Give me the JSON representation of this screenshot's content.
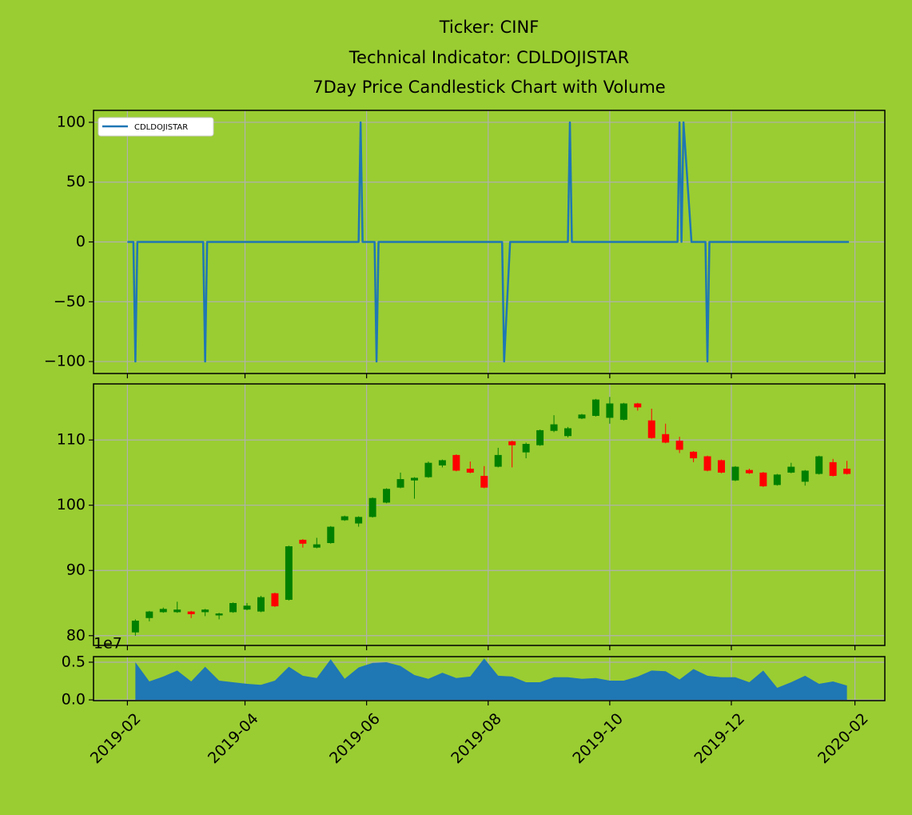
{
  "title": [
    "Ticker: CINF",
    "Technical Indicator: CDLDOJISTAR",
    "7Day Price Candlestick Chart with Volume"
  ],
  "chart_data": [
    {
      "type": "line",
      "x": [
        "2019-02-01",
        "2019-02-04",
        "2019-02-05",
        "2019-02-06",
        "2019-03-11",
        "2019-03-12",
        "2019-03-13",
        "2019-05-28",
        "2019-05-29",
        "2019-05-30",
        "2019-06-05",
        "2019-06-06",
        "2019-06-07",
        "2019-08-08",
        "2019-08-09",
        "2019-08-12",
        "2019-09-10",
        "2019-09-11",
        "2019-09-12",
        "2019-11-04",
        "2019-11-05",
        "2019-11-06",
        "2019-11-07",
        "2019-11-11",
        "2019-11-18",
        "2019-11-19",
        "2019-11-20",
        "2020-01-29"
      ],
      "series": [
        {
          "name": "CDLDOJISTAR",
          "color": "#1f77b4",
          "values": [
            0,
            0,
            -100,
            0,
            0,
            -100,
            0,
            0,
            100,
            0,
            0,
            -100,
            0,
            0,
            -100,
            0,
            0,
            100,
            0,
            0,
            100,
            0,
            100,
            0,
            0,
            -100,
            0,
            0
          ]
        }
      ],
      "ylim": [
        -110,
        110
      ],
      "yticks": [
        {
          "value": -100,
          "label": "−100"
        },
        {
          "value": -50,
          "label": "−50"
        },
        0,
        50,
        100
      ],
      "grid": true,
      "legend": "upper left"
    },
    {
      "type": "candlestick",
      "x": [
        "2019-02-05",
        "2019-02-12",
        "2019-02-19",
        "2019-02-26",
        "2019-03-05",
        "2019-03-12",
        "2019-03-19",
        "2019-03-26",
        "2019-04-02",
        "2019-04-09",
        "2019-04-16",
        "2019-04-23",
        "2019-04-30",
        "2019-05-07",
        "2019-05-14",
        "2019-05-21",
        "2019-05-28",
        "2019-06-04",
        "2019-06-11",
        "2019-06-18",
        "2019-06-25",
        "2019-07-02",
        "2019-07-09",
        "2019-07-16",
        "2019-07-23",
        "2019-07-30",
        "2019-08-06",
        "2019-08-13",
        "2019-08-20",
        "2019-08-27",
        "2019-09-03",
        "2019-09-10",
        "2019-09-17",
        "2019-09-24",
        "2019-10-01",
        "2019-10-08",
        "2019-10-15",
        "2019-10-22",
        "2019-10-29",
        "2019-11-05",
        "2019-11-12",
        "2019-11-19",
        "2019-11-26",
        "2019-12-03",
        "2019-12-10",
        "2019-12-17",
        "2019-12-24",
        "2019-12-31",
        "2020-01-07",
        "2020-01-14",
        "2020-01-21",
        "2020-01-28"
      ],
      "open": [
        80.5,
        82.7,
        83.6,
        83.6,
        83.7,
        83.6,
        83.1,
        83.6,
        84.0,
        83.7,
        86.5,
        85.5,
        94.7,
        93.5,
        94.2,
        97.7,
        97.2,
        98.2,
        100.4,
        102.7,
        103.8,
        104.3,
        106.1,
        107.7,
        105.6,
        104.5,
        105.9,
        109.8,
        108.1,
        109.2,
        111.4,
        110.6,
        113.3,
        113.7,
        113.4,
        113.1,
        115.6,
        113.0,
        110.9,
        109.9,
        108.2,
        107.5,
        106.9,
        103.8,
        105.4,
        105.0,
        103.1,
        105.0,
        103.6,
        104.8,
        106.6,
        105.6
      ],
      "high": [
        82.5,
        83.8,
        84.3,
        85.2,
        83.8,
        84.1,
        83.5,
        85.1,
        85.0,
        86.1,
        86.6,
        93.8,
        94.8,
        95.0,
        96.8,
        98.4,
        98.3,
        101.2,
        102.6,
        105.0,
        104.3,
        106.7,
        107.0,
        107.8,
        106.7,
        106.0,
        108.8,
        109.9,
        109.6,
        111.6,
        113.8,
        112.0,
        114.0,
        116.3,
        116.6,
        115.7,
        115.7,
        114.8,
        112.5,
        110.5,
        108.3,
        107.6,
        107.0,
        106.0,
        105.6,
        105.1,
        104.8,
        106.5,
        105.4,
        107.6,
        107.1,
        106.8
      ],
      "low": [
        80.0,
        82.2,
        83.5,
        83.5,
        82.7,
        83.0,
        82.5,
        83.5,
        83.9,
        83.6,
        84.4,
        85.4,
        93.5,
        93.4,
        94.1,
        97.6,
        96.7,
        98.1,
        100.3,
        102.6,
        101.0,
        104.2,
        105.8,
        105.2,
        104.9,
        102.6,
        105.8,
        105.8,
        107.2,
        109.1,
        111.2,
        110.4,
        113.2,
        113.6,
        112.5,
        113.0,
        114.5,
        110.2,
        109.5,
        108.0,
        106.6,
        105.2,
        104.9,
        103.7,
        104.8,
        102.8,
        103.0,
        104.9,
        103.0,
        104.7,
        104.4,
        104.7
      ],
      "close": [
        82.3,
        83.7,
        84.1,
        84.0,
        83.3,
        84.0,
        83.4,
        85.0,
        84.6,
        85.9,
        84.5,
        93.7,
        94.1,
        94.0,
        96.7,
        98.3,
        98.2,
        101.1,
        102.5,
        104.0,
        104.2,
        106.5,
        106.9,
        105.3,
        105.0,
        102.7,
        107.7,
        109.2,
        109.4,
        111.5,
        112.4,
        111.8,
        113.9,
        116.2,
        115.6,
        115.6,
        115.0,
        110.3,
        109.6,
        108.5,
        107.2,
        105.3,
        105.0,
        105.9,
        104.9,
        102.9,
        104.7,
        105.9,
        105.3,
        107.5,
        104.5,
        104.8
      ],
      "up_color": "#008000",
      "down_color": "#ff0000",
      "ylim": [
        78.5,
        118.6
      ],
      "yticks": [
        80,
        90,
        100,
        110
      ],
      "grid": true
    },
    {
      "type": "area",
      "x": [
        "2019-02-05",
        "2019-02-12",
        "2019-02-19",
        "2019-02-26",
        "2019-03-05",
        "2019-03-12",
        "2019-03-19",
        "2019-03-26",
        "2019-04-02",
        "2019-04-09",
        "2019-04-16",
        "2019-04-23",
        "2019-04-30",
        "2019-05-07",
        "2019-05-14",
        "2019-05-21",
        "2019-05-28",
        "2019-06-04",
        "2019-06-11",
        "2019-06-18",
        "2019-06-25",
        "2019-07-02",
        "2019-07-09",
        "2019-07-16",
        "2019-07-23",
        "2019-07-30",
        "2019-08-06",
        "2019-08-13",
        "2019-08-20",
        "2019-08-27",
        "2019-09-03",
        "2019-09-10",
        "2019-09-17",
        "2019-09-24",
        "2019-10-01",
        "2019-10-08",
        "2019-10-15",
        "2019-10-22",
        "2019-10-29",
        "2019-11-05",
        "2019-11-12",
        "2019-11-19",
        "2019-11-26",
        "2019-12-03",
        "2019-12-10",
        "2019-12-17",
        "2019-12-24",
        "2019-12-31",
        "2020-01-07",
        "2020-01-14",
        "2020-01-21",
        "2020-01-28"
      ],
      "values": [
        0.5,
        0.245,
        0.31,
        0.39,
        0.245,
        0.44,
        0.255,
        0.234,
        0.213,
        0.2,
        0.255,
        0.44,
        0.32,
        0.29,
        0.54,
        0.28,
        0.43,
        0.49,
        0.5,
        0.45,
        0.33,
        0.28,
        0.36,
        0.29,
        0.31,
        0.55,
        0.32,
        0.31,
        0.234,
        0.234,
        0.3,
        0.3,
        0.28,
        0.29,
        0.255,
        0.255,
        0.31,
        0.39,
        0.38,
        0.27,
        0.41,
        0.32,
        0.3,
        0.3,
        0.234,
        0.39,
        0.16,
        0.234,
        0.32,
        0.213,
        0.245,
        0.19
      ],
      "color": "#1f77b4",
      "offset_text": "1e7",
      "ylim": [
        -0.01,
        0.574
      ],
      "yticks": [
        {
          "value": 0,
          "label": "0.0"
        },
        0.5
      ],
      "grid": true,
      "xlim": [
        "2019-01-15",
        "2020-02-16"
      ],
      "xticks": [
        {
          "value": "2019-02-01",
          "label": "2019-02"
        },
        {
          "value": "2019-04-01",
          "label": "2019-04"
        },
        {
          "value": "2019-06-01",
          "label": "2019-06"
        },
        {
          "value": "2019-08-01",
          "label": "2019-08"
        },
        {
          "value": "2019-10-01",
          "label": "2019-10"
        },
        {
          "value": "2019-12-01",
          "label": "2019-12"
        },
        {
          "value": "2020-02-01",
          "label": "2020-02"
        }
      ]
    }
  ]
}
